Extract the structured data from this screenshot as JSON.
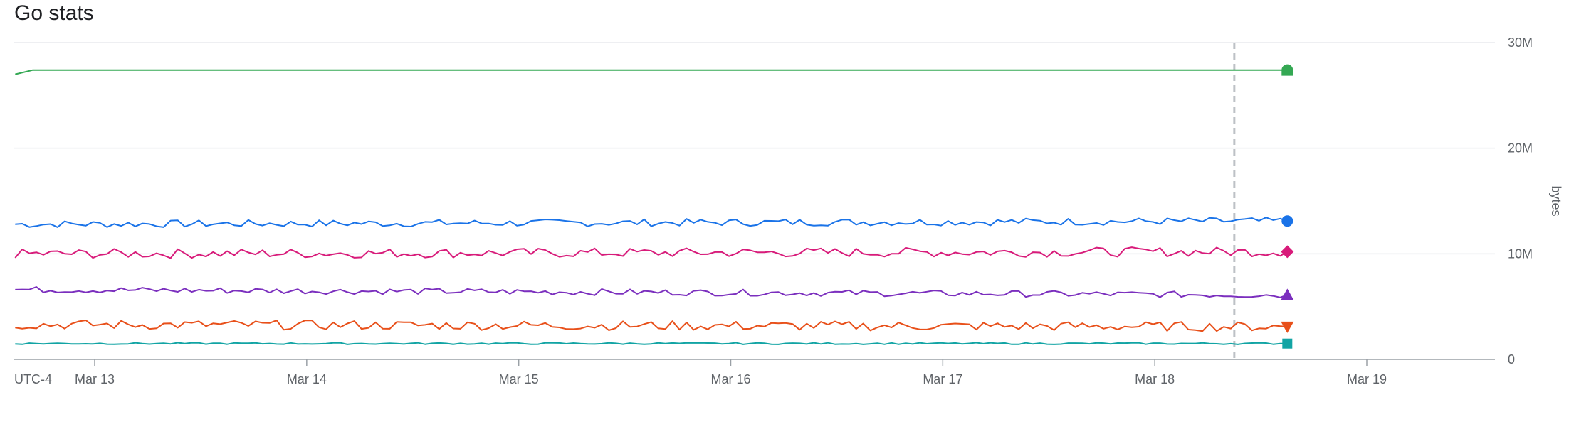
{
  "chart_data": {
    "type": "line",
    "title": "Go stats",
    "ylabel": "bytes",
    "timezone_label": "UTC-4",
    "x_ticks": [
      "Mar 13",
      "Mar 14",
      "Mar 15",
      "Mar 16",
      "Mar 17",
      "Mar 18",
      "Mar 19"
    ],
    "y_ticks": [
      "0",
      "10M",
      "20M",
      "30M"
    ],
    "ylim": [
      0,
      30000000
    ],
    "xlim": [
      "Mar 12 15:00",
      "Mar 19 16:00"
    ],
    "grid": true,
    "cursor_x": "Mar 18 09:00",
    "series": [
      {
        "color": "#34a853",
        "marker": "semicircle",
        "x": [
          "Mar 12 15:00",
          "Mar 12 17:00",
          "Mar 18 15:00"
        ],
        "values": [
          27000000,
          27400000,
          27400000
        ]
      },
      {
        "color": "#1a73e8",
        "marker": "circle",
        "x": [
          "Mar 12 15:00",
          "Mar 18 15:00"
        ],
        "values": [
          12800000,
          13100000
        ],
        "jitter": 350000
      },
      {
        "color": "#d81b7a",
        "marker": "diamond",
        "x": [
          "Mar 12 15:00",
          "Mar 18 15:00"
        ],
        "values": [
          10000000,
          10200000
        ],
        "jitter": 450000
      },
      {
        "color": "#7b2fbe",
        "marker": "triangle-up",
        "x": [
          "Mar 12 15:00",
          "Mar 18 15:00"
        ],
        "values": [
          6600000,
          6100000
        ],
        "jitter": 300000
      },
      {
        "color": "#e8501a",
        "marker": "triangle-down",
        "x": [
          "Mar 12 15:00",
          "Mar 18 15:00"
        ],
        "values": [
          3300000,
          3100000
        ],
        "jitter": 450000
      },
      {
        "color": "#12a4a4",
        "marker": "square",
        "x": [
          "Mar 12 15:00",
          "Mar 18 15:00"
        ],
        "values": [
          1500000,
          1500000
        ],
        "jitter": 80000
      }
    ]
  }
}
